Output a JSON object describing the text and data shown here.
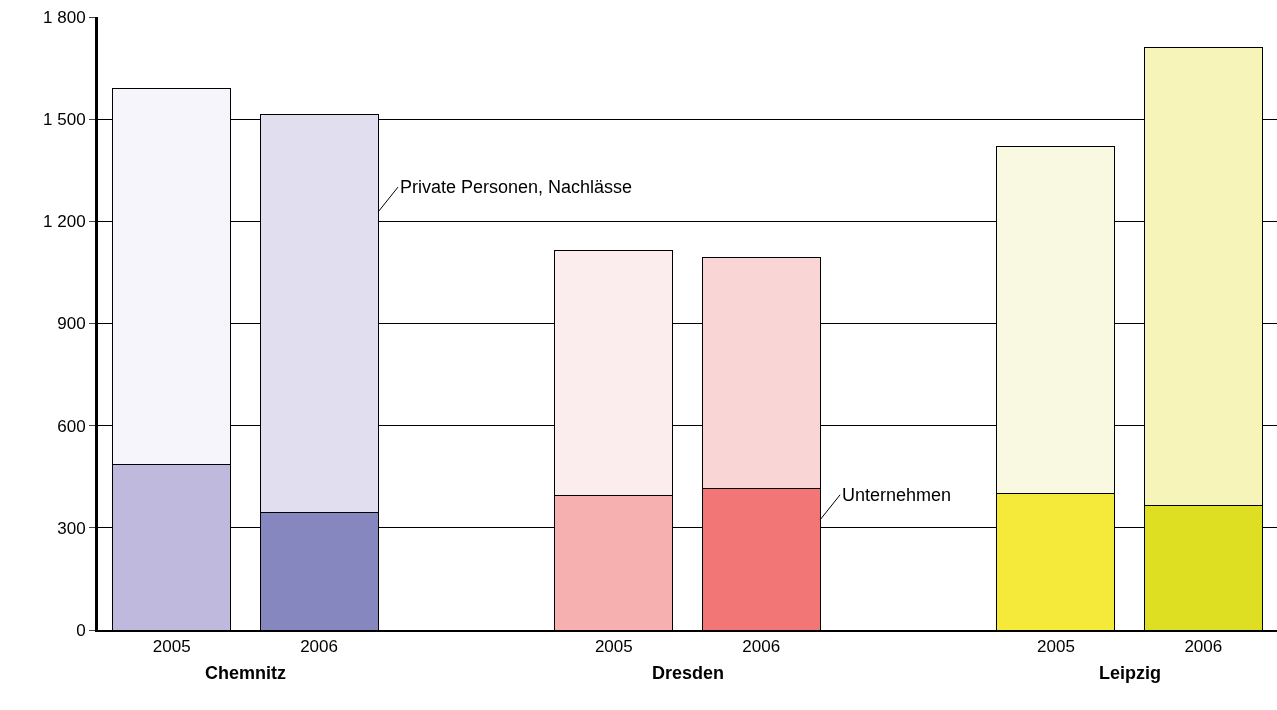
{
  "chart_data": {
    "type": "bar",
    "stacked": true,
    "categories": [
      "2005",
      "2006",
      null,
      "2005",
      "2006",
      null,
      "2005",
      "2006"
    ],
    "series": [
      {
        "name": "Unternehmen",
        "colors": [
          "#bfbadd",
          "#8787c0",
          null,
          "#f6b0b0",
          "#f37677",
          null,
          "#f5ea3a",
          "#dede22"
        ],
        "values": [
          485,
          345,
          null,
          395,
          415,
          null,
          400,
          365
        ]
      },
      {
        "name": "Private Personen, Nachlässe",
        "colors": [
          "#f6f5fb",
          "#e1def0",
          null,
          "#fbeded",
          "#fad5d6",
          null,
          "#f9f8e0",
          "#f7f4b9"
        ],
        "values": [
          1105,
          1170,
          null,
          720,
          680,
          null,
          1020,
          1345
        ]
      }
    ],
    "annotations": [
      "Chemnitz",
      "Dresden",
      "Leipzig"
    ],
    "ylim": [
      0,
      1800
    ],
    "yticks": [
      0,
      300,
      600,
      900,
      {
        "value": 1200,
        "label": "1 200"
      },
      {
        "value": 1500,
        "label": "1 500"
      },
      {
        "value": 1800,
        "label": "1 800"
      }
    ],
    "grid": "y",
    "legend": "center"
  }
}
